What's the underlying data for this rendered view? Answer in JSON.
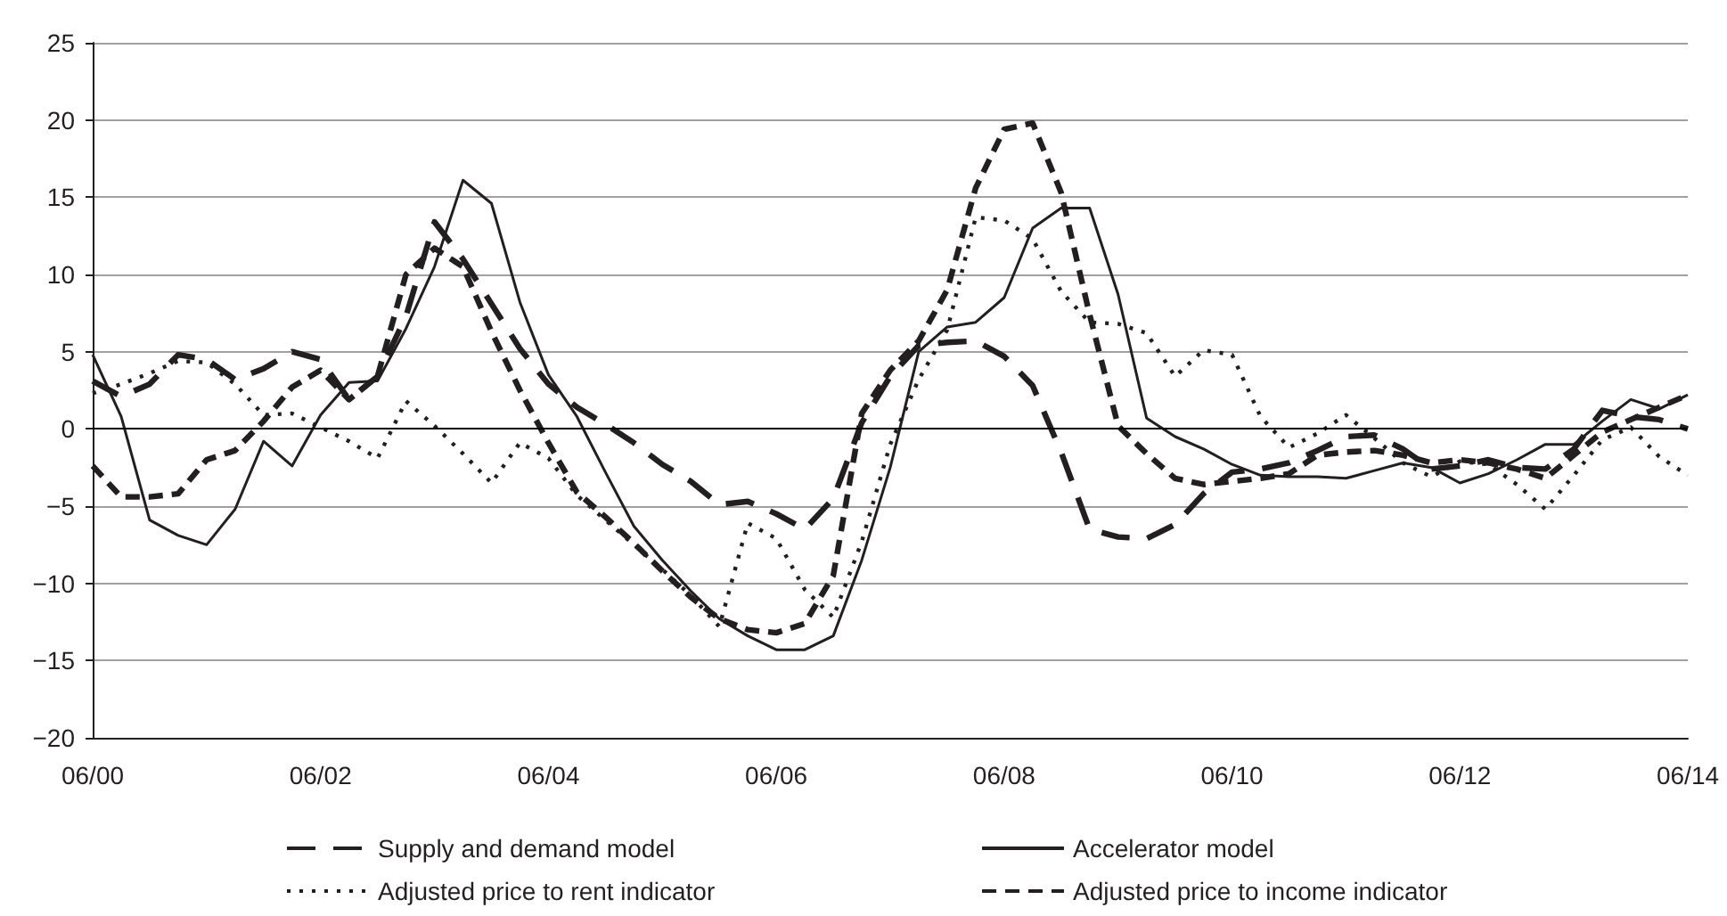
{
  "chart_data": {
    "type": "line",
    "marker": "none",
    "grid": "y",
    "legend": "bottom",
    "categories": [
      "06/00",
      null,
      null,
      null,
      null,
      null,
      null,
      null,
      "06/02",
      null,
      null,
      null,
      null,
      null,
      null,
      null,
      "06/04",
      null,
      null,
      null,
      null,
      null,
      null,
      null,
      "06/06",
      null,
      null,
      null,
      null,
      null,
      null,
      null,
      "06/08",
      null,
      null,
      null,
      null,
      null,
      null,
      null,
      "06/10",
      null,
      null,
      null,
      null,
      null,
      null,
      null,
      "06/12",
      null,
      null,
      null,
      null,
      null,
      null,
      null,
      "06/14"
    ],
    "ylim": [
      -20,
      25
    ],
    "yticks": [
      {
        "value": -20,
        "label": "−20"
      },
      {
        "value": -15,
        "label": "−15"
      },
      {
        "value": -10,
        "label": "−10"
      },
      {
        "value": -5,
        "label": "−5"
      },
      0,
      5,
      10,
      15,
      20,
      25
    ],
    "ref_lines": [
      {
        "axis": "y",
        "value": 0,
        "color": "#000000"
      }
    ],
    "series": [
      {
        "name": "Supply and demand model",
        "color": "#231f20",
        "line_style": "dashed",
        "values": [
          3.1,
          2.1,
          2.9,
          4.8,
          4.5,
          3.2,
          3.9,
          5.0,
          4.5,
          1.9,
          3.4,
          7.3,
          13.4,
          11.0,
          8.1,
          5.2,
          2.9,
          1.4,
          0.3,
          -0.9,
          -2.3,
          -3.4,
          -4.9,
          -4.7,
          -5.5,
          -6.5,
          -4.5,
          0.4,
          3.4,
          5.4,
          5.6,
          5.7,
          4.7,
          2.8,
          -1.5,
          -6.5,
          -7.0,
          -7.1,
          -6.2,
          -4.2,
          -2.8,
          -2.6,
          -2.2,
          -1.4,
          -0.5,
          -0.4,
          -1.3,
          -2.6,
          -2.4,
          -2.0,
          -2.5,
          -2.6,
          -1.3,
          1.2,
          0.8,
          0.6,
          0.0
        ]
      },
      {
        "name": "Accelerator model",
        "color": "#231f20",
        "line_style": "solid",
        "values": [
          4.8,
          0.8,
          -5.9,
          -6.9,
          -7.5,
          -5.2,
          -0.8,
          -2.4,
          0.9,
          3.0,
          3.1,
          6.5,
          10.5,
          16.1,
          14.6,
          8.2,
          3.5,
          0.8,
          -2.8,
          -6.3,
          -8.5,
          -10.5,
          -12.3,
          -13.4,
          -14.3,
          -14.3,
          -13.4,
          -8.5,
          -2.5,
          5.0,
          6.6,
          6.9,
          8.5,
          13.0,
          14.3,
          14.3,
          8.7,
          0.7,
          -0.5,
          -1.3,
          -2.3,
          -3.0,
          -3.1,
          -3.1,
          -3.2,
          -2.7,
          -2.2,
          -2.5,
          -3.5,
          -2.9,
          -2.0,
          -1.0,
          -1.0,
          0.5,
          1.9,
          1.3,
          2.2
        ]
      },
      {
        "name": "Adjusted price to rent indicator",
        "color": "#231f20",
        "line_style": "dotted",
        "values": [
          2.3,
          2.9,
          3.6,
          4.4,
          4.3,
          2.9,
          0.9,
          1.0,
          0.1,
          -0.8,
          -1.9,
          1.8,
          0.2,
          -1.6,
          -3.5,
          -0.9,
          -1.9,
          -4.3,
          -5.9,
          -7.5,
          -9.1,
          -10.8,
          -12.8,
          -6.1,
          -7.1,
          -10.4,
          -12.2,
          -7.3,
          -1.0,
          3.2,
          6.4,
          13.7,
          13.5,
          12.3,
          8.9,
          6.9,
          6.8,
          6.2,
          3.4,
          5.1,
          4.8,
          0.8,
          -1.2,
          -0.3,
          0.9,
          -0.6,
          -2.2,
          -3.1,
          -2.1,
          -2.3,
          -3.6,
          -5.2,
          -3.0,
          -0.7,
          0.1,
          -1.8,
          -3.0
        ]
      },
      {
        "name": "Adjusted price to income indicator",
        "color": "#231f20",
        "line_style": "dashed",
        "values": [
          -2.4,
          -4.4,
          -4.4,
          -4.2,
          -2.0,
          -1.4,
          0.5,
          2.7,
          3.8,
          1.9,
          3.4,
          10.0,
          11.7,
          10.5,
          6.3,
          2.5,
          -0.9,
          -4.1,
          -5.7,
          -7.4,
          -9.2,
          -10.9,
          -12.3,
          -13.0,
          -13.2,
          -12.6,
          -9.5,
          1.0,
          3.8,
          5.7,
          9.0,
          15.6,
          19.4,
          19.8,
          15.3,
          7.4,
          0.2,
          -1.6,
          -3.2,
          -3.6,
          -3.4,
          -3.2,
          -2.9,
          -1.7,
          -1.5,
          -1.4,
          -1.7,
          -2.2,
          -2.0,
          -2.2,
          -2.6,
          -3.2,
          -1.7,
          -0.2,
          0.6,
          1.4,
          2.2
        ]
      }
    ]
  }
}
